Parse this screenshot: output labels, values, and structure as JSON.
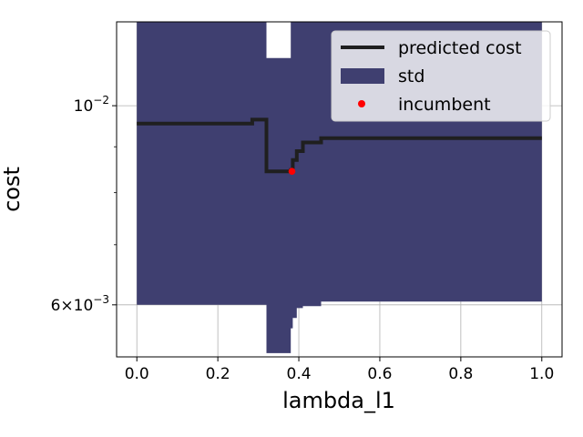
{
  "chart_data": {
    "type": "line",
    "title": "",
    "xlabel": "lambda_l1",
    "ylabel": "cost",
    "yscale": "log",
    "xlim": [
      -0.05,
      1.05
    ],
    "ylim": [
      0.00525,
      0.0124
    ],
    "grid": true,
    "legend_position": "top-right",
    "x_ticks": [
      {
        "value": 0.0,
        "label": "0.0"
      },
      {
        "value": 0.2,
        "label": "0.2"
      },
      {
        "value": 0.4,
        "label": "0.4"
      },
      {
        "value": 0.6,
        "label": "0.6"
      },
      {
        "value": 0.8,
        "label": "0.8"
      },
      {
        "value": 1.0,
        "label": "1.0"
      }
    ],
    "y_major_ticks": [
      {
        "value": 0.01,
        "base": "10",
        "exponent": "−2",
        "coef": ""
      },
      {
        "value": 0.006,
        "base": "10",
        "exponent": "−3",
        "coef": "6×"
      }
    ],
    "y_minor_ticks": [
      0.007,
      0.008,
      0.009
    ],
    "series": [
      {
        "name": "predicted cost",
        "kind": "step-line",
        "color": "#1f1f1f",
        "x": [
          0.0,
          0.285,
          0.285,
          0.32,
          0.32,
          0.38,
          0.38,
          0.385,
          0.385,
          0.395,
          0.395,
          0.41,
          0.41,
          0.455,
          0.455,
          1.0
        ],
        "y": [
          0.00955,
          0.00955,
          0.00965,
          0.00965,
          0.00845,
          0.00845,
          0.00848,
          0.00848,
          0.0087,
          0.0087,
          0.0089,
          0.0089,
          0.0091,
          0.0091,
          0.0092,
          0.0092
        ]
      },
      {
        "name": "std",
        "kind": "band",
        "color": "#3f3f70",
        "x": [
          0.0,
          0.285,
          0.285,
          0.32,
          0.32,
          0.38,
          0.38,
          0.385,
          0.385,
          0.395,
          0.395,
          0.41,
          0.41,
          0.455,
          0.455,
          1.0
        ],
        "upper": [
          0.0124,
          0.0124,
          0.0124,
          0.0124,
          0.0113,
          0.0113,
          0.0124,
          0.0124,
          0.0124,
          0.0124,
          0.0124,
          0.0124,
          0.0124,
          0.0124,
          0.0124,
          0.0124
        ],
        "lower": [
          0.006,
          0.006,
          0.006,
          0.006,
          0.0053,
          0.0053,
          0.00565,
          0.00565,
          0.0058,
          0.0058,
          0.00595,
          0.00595,
          0.00598,
          0.00598,
          0.00605,
          0.00605
        ]
      },
      {
        "name": "incumbent",
        "kind": "point",
        "color": "#ff0000",
        "x": [
          0.383
        ],
        "y": [
          0.00845
        ]
      }
    ],
    "legend": [
      {
        "label": "predicted cost",
        "swatch": "line",
        "color": "#1f1f1f"
      },
      {
        "label": "std",
        "swatch": "patch",
        "color": "#3f3f70"
      },
      {
        "label": "incumbent",
        "swatch": "dot",
        "color": "#ff0000"
      }
    ]
  }
}
